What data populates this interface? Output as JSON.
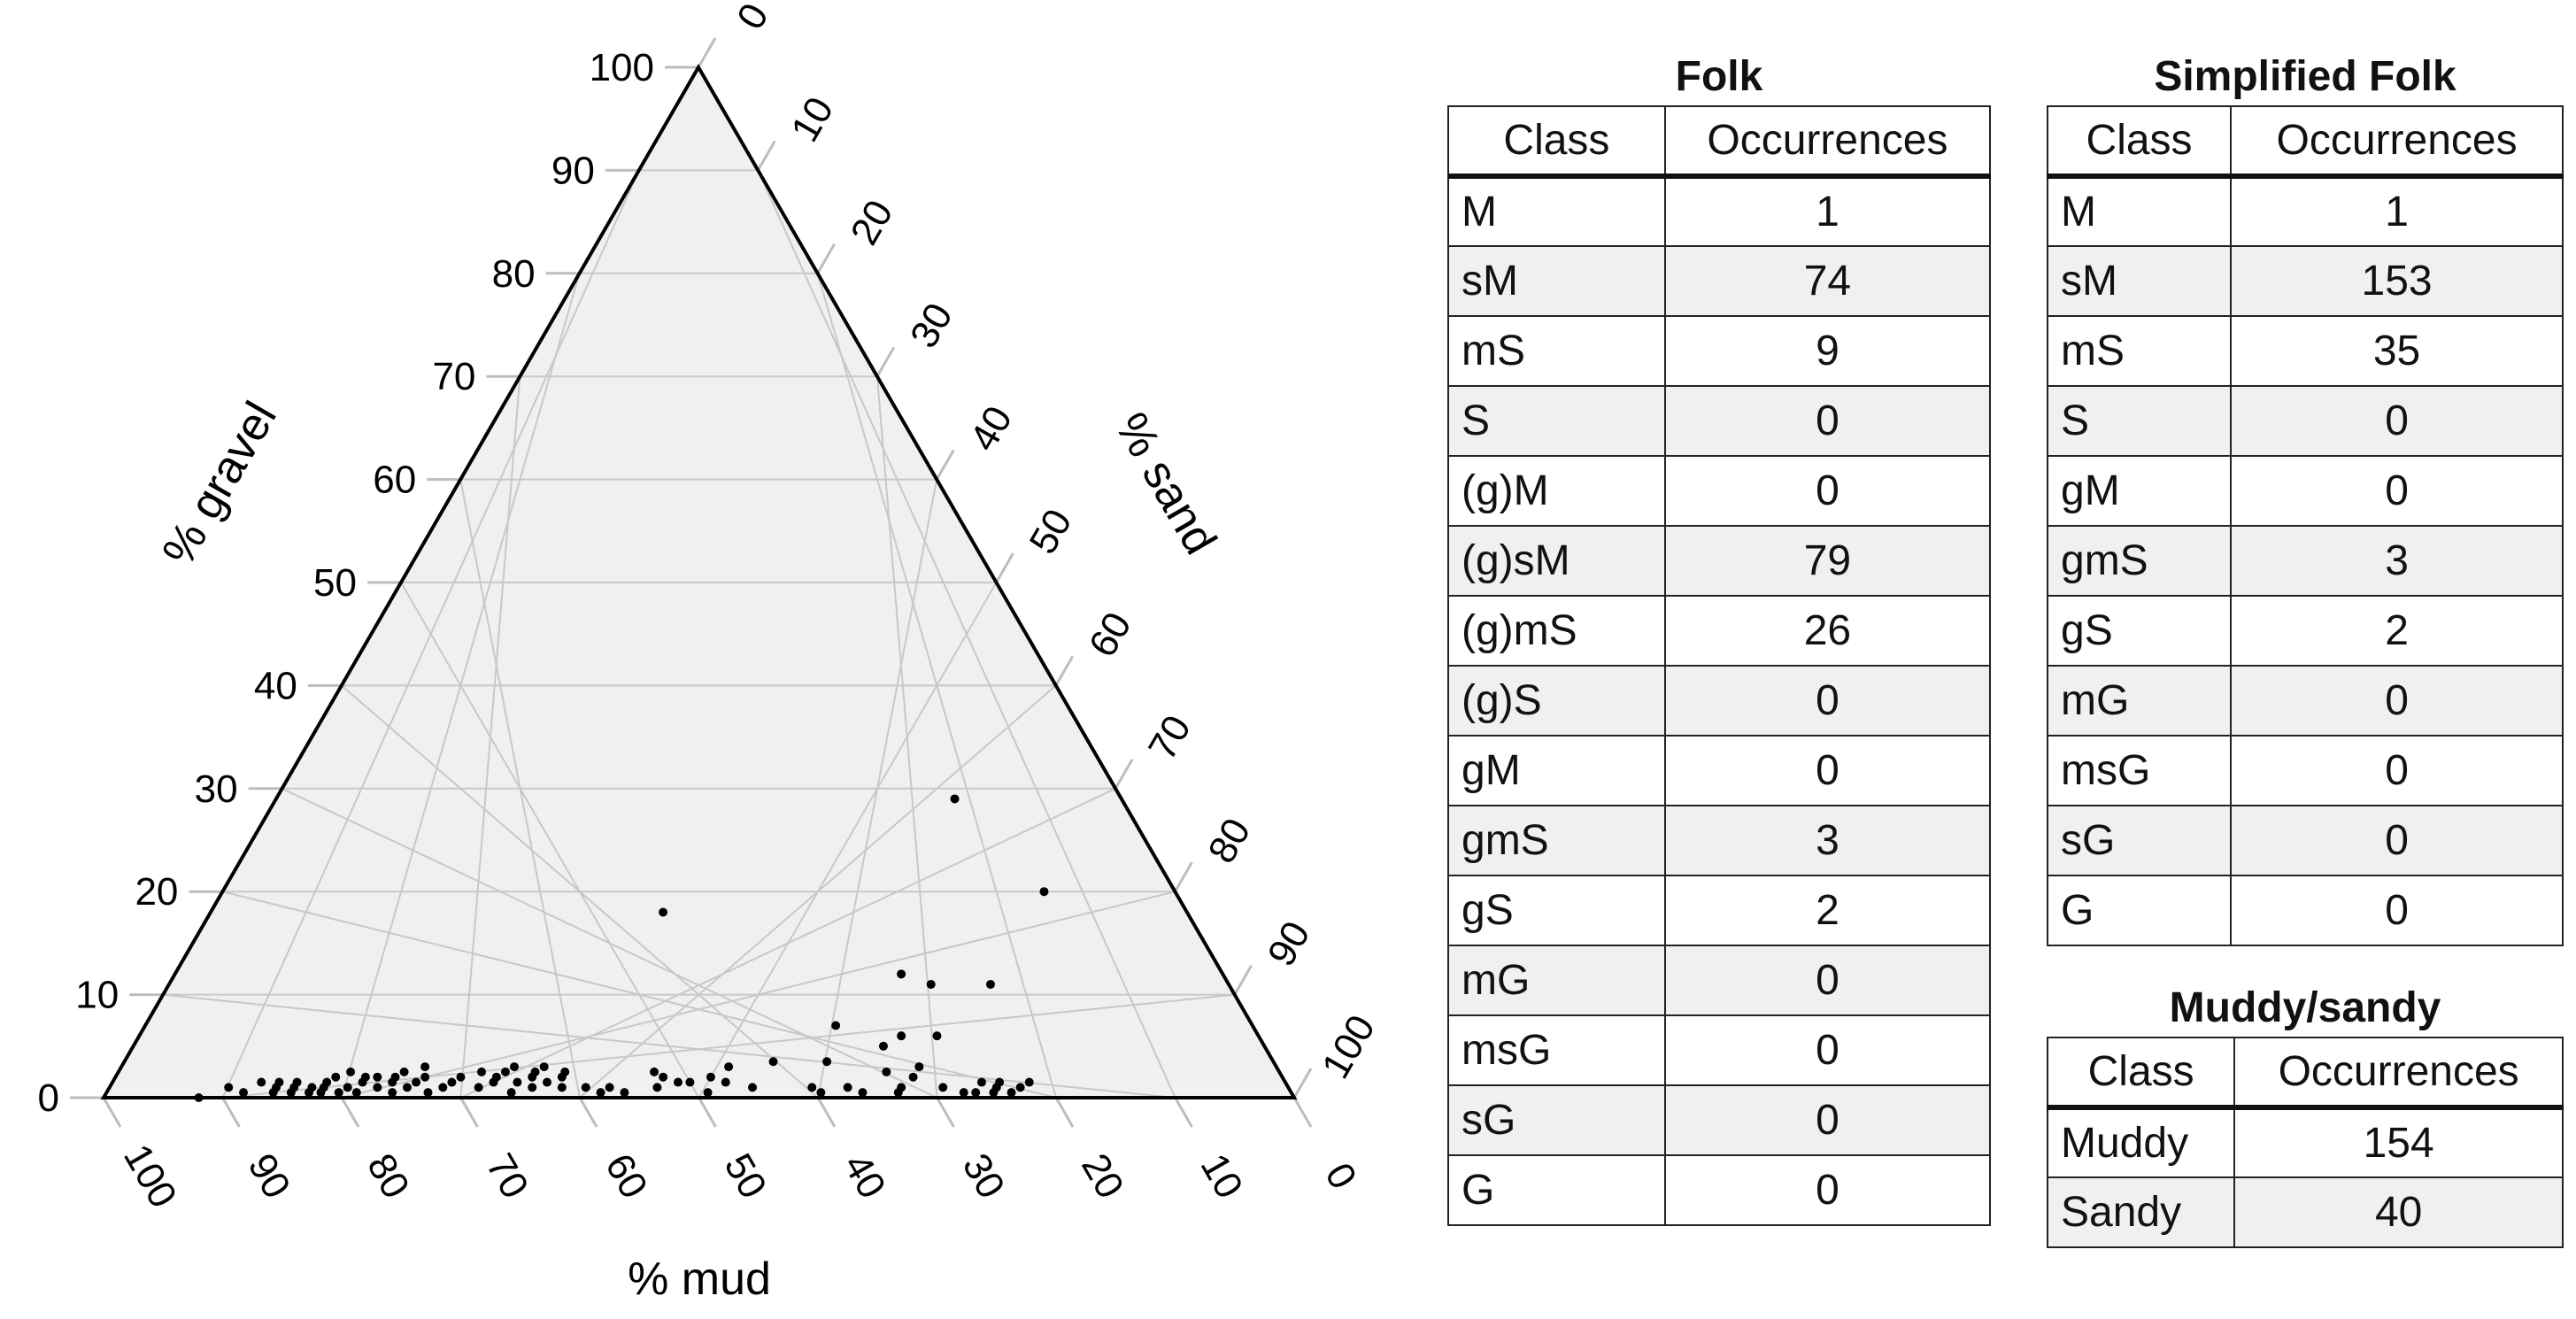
{
  "chart_data": {
    "type": "scatter",
    "subtype": "ternary",
    "axes": {
      "gravel": {
        "label": "% gravel",
        "ticks": [
          "0",
          "10",
          "20",
          "30",
          "40",
          "50",
          "60",
          "70",
          "80",
          "90",
          "100"
        ]
      },
      "sand": {
        "label": "% sand",
        "ticks": [
          "0",
          "10",
          "20",
          "30",
          "40",
          "50",
          "60",
          "70",
          "80",
          "90",
          "100"
        ]
      },
      "mud": {
        "label": "% mud",
        "ticks": [
          "100",
          "90",
          "80",
          "70",
          "60",
          "50",
          "40",
          "30",
          "20",
          "10",
          "0"
        ]
      }
    },
    "grid": true,
    "points": [
      {
        "mud": 92,
        "gravel": 0
      },
      {
        "mud": 89,
        "gravel": 1
      },
      {
        "mud": 88,
        "gravel": 0.5
      },
      {
        "mud": 86,
        "gravel": 1.5
      },
      {
        "mud": 85.5,
        "gravel": 0.5
      },
      {
        "mud": 85,
        "gravel": 1
      },
      {
        "mud": 84.5,
        "gravel": 1.5
      },
      {
        "mud": 84,
        "gravel": 0.5
      },
      {
        "mud": 83.5,
        "gravel": 1
      },
      {
        "mud": 83,
        "gravel": 1.5
      },
      {
        "mud": 82.5,
        "gravel": 0.5
      },
      {
        "mud": 82,
        "gravel": 1
      },
      {
        "mud": 81.5,
        "gravel": 0.5
      },
      {
        "mud": 81,
        "gravel": 1
      },
      {
        "mud": 80.5,
        "gravel": 1.5
      },
      {
        "mud": 80,
        "gravel": 0.5
      },
      {
        "mud": 79.5,
        "gravel": 2
      },
      {
        "mud": 79,
        "gravel": 1
      },
      {
        "mud": 78.5,
        "gravel": 0.5
      },
      {
        "mud": 78,
        "gravel": 2.5
      },
      {
        "mud": 77.5,
        "gravel": 1.5
      },
      {
        "mud": 77,
        "gravel": 2
      },
      {
        "mud": 76.5,
        "gravel": 1
      },
      {
        "mud": 76,
        "gravel": 2
      },
      {
        "mud": 75.5,
        "gravel": 0.5
      },
      {
        "mud": 75,
        "gravel": 1.5
      },
      {
        "mud": 74.5,
        "gravel": 2
      },
      {
        "mud": 74,
        "gravel": 1
      },
      {
        "mud": 73.5,
        "gravel": 2.5
      },
      {
        "mud": 73,
        "gravel": 1.5
      },
      {
        "mud": 72.5,
        "gravel": 0.5
      },
      {
        "mud": 72,
        "gravel": 2
      },
      {
        "mud": 71.5,
        "gravel": 3
      },
      {
        "mud": 71,
        "gravel": 1
      },
      {
        "mud": 70,
        "gravel": 1.5
      },
      {
        "mud": 69,
        "gravel": 2
      },
      {
        "mud": 68,
        "gravel": 1
      },
      {
        "mud": 67,
        "gravel": 2.5
      },
      {
        "mud": 66.5,
        "gravel": 1.5
      },
      {
        "mud": 66,
        "gravel": 2
      },
      {
        "mud": 65.5,
        "gravel": 0.5
      },
      {
        "mud": 65,
        "gravel": 2.5
      },
      {
        "mud": 64.5,
        "gravel": 1.5
      },
      {
        "mud": 64,
        "gravel": 3
      },
      {
        "mud": 63.5,
        "gravel": 1
      },
      {
        "mud": 63,
        "gravel": 2
      },
      {
        "mud": 62.5,
        "gravel": 2.5
      },
      {
        "mud": 62,
        "gravel": 1.5
      },
      {
        "mud": 61.5,
        "gravel": 3
      },
      {
        "mud": 61,
        "gravel": 1
      },
      {
        "mud": 60.5,
        "gravel": 2
      },
      {
        "mud": 60,
        "gravel": 2.5
      },
      {
        "mud": 59,
        "gravel": 1
      },
      {
        "mud": 58,
        "gravel": 0.5
      },
      {
        "mud": 57,
        "gravel": 1
      },
      {
        "mud": 56,
        "gravel": 0.5
      },
      {
        "mud": 53,
        "gravel": 1
      },
      {
        "mud": 52.5,
        "gravel": 2.5
      },
      {
        "mud": 52,
        "gravel": 2
      },
      {
        "mud": 51,
        "gravel": 1.5
      },
      {
        "mud": 50,
        "gravel": 1.5
      },
      {
        "mud": 49,
        "gravel": 0.5
      },
      {
        "mud": 48,
        "gravel": 2
      },
      {
        "mud": 47,
        "gravel": 1.5
      },
      {
        "mud": 46,
        "gravel": 3
      },
      {
        "mud": 45,
        "gravel": 1
      },
      {
        "mud": 40,
        "gravel": 1
      },
      {
        "mud": 39.5,
        "gravel": 0.5
      },
      {
        "mud": 37,
        "gravel": 1
      },
      {
        "mud": 36,
        "gravel": 0.5
      },
      {
        "mud": 33,
        "gravel": 0.5
      },
      {
        "mud": 32.5,
        "gravel": 1
      },
      {
        "mud": 31,
        "gravel": 2
      },
      {
        "mud": 30,
        "gravel": 3
      },
      {
        "mud": 29,
        "gravel": 1
      },
      {
        "mud": 27.5,
        "gravel": 0.5
      },
      {
        "mud": 26.5,
        "gravel": 0.5
      },
      {
        "mud": 25.5,
        "gravel": 1.5
      },
      {
        "mud": 25,
        "gravel": 0.5
      },
      {
        "mud": 24.5,
        "gravel": 1
      },
      {
        "mud": 24,
        "gravel": 1.5
      },
      {
        "mud": 23.5,
        "gravel": 0.5
      },
      {
        "mud": 22.5,
        "gravel": 1
      },
      {
        "mud": 21.5,
        "gravel": 1.5
      },
      {
        "mud": 44,
        "gravel": 18
      },
      {
        "mud": 27,
        "gravel": 12
      },
      {
        "mud": 25,
        "gravel": 11
      },
      {
        "mud": 20,
        "gravel": 11
      },
      {
        "mud": 27,
        "gravel": 6
      },
      {
        "mud": 30,
        "gravel": 6
      },
      {
        "mud": 32,
        "gravel": 5
      },
      {
        "mud": 35,
        "gravel": 7
      },
      {
        "mud": 14,
        "gravel": 29
      },
      {
        "mud": 11,
        "gravel": 20
      },
      {
        "mud": 33,
        "gravel": 2.5
      },
      {
        "mud": 37.5,
        "gravel": 3.5
      },
      {
        "mud": 42,
        "gravel": 3.5
      }
    ]
  },
  "tables": {
    "folk": {
      "title": "Folk",
      "headers": [
        "Class",
        "Occurrences"
      ],
      "rows": [
        [
          "M",
          "1"
        ],
        [
          "sM",
          "74"
        ],
        [
          "mS",
          "9"
        ],
        [
          "S",
          "0"
        ],
        [
          "(g)M",
          "0"
        ],
        [
          "(g)sM",
          "79"
        ],
        [
          "(g)mS",
          "26"
        ],
        [
          "(g)S",
          "0"
        ],
        [
          "gM",
          "0"
        ],
        [
          "gmS",
          "3"
        ],
        [
          "gS",
          "2"
        ],
        [
          "mG",
          "0"
        ],
        [
          "msG",
          "0"
        ],
        [
          "sG",
          "0"
        ],
        [
          "G",
          "0"
        ]
      ]
    },
    "simplified": {
      "title": "Simplified Folk",
      "headers": [
        "Class",
        "Occurrences"
      ],
      "rows": [
        [
          "M",
          "1"
        ],
        [
          "sM",
          "153"
        ],
        [
          "mS",
          "35"
        ],
        [
          "S",
          "0"
        ],
        [
          "gM",
          "0"
        ],
        [
          "gmS",
          "3"
        ],
        [
          "gS",
          "2"
        ],
        [
          "mG",
          "0"
        ],
        [
          "msG",
          "0"
        ],
        [
          "sG",
          "0"
        ],
        [
          "G",
          "0"
        ]
      ]
    },
    "muddy": {
      "title": "Muddy/sandy",
      "headers": [
        "Class",
        "Occurrences"
      ],
      "rows": [
        [
          "Muddy",
          "154"
        ],
        [
          "Sandy",
          "40"
        ]
      ]
    }
  }
}
